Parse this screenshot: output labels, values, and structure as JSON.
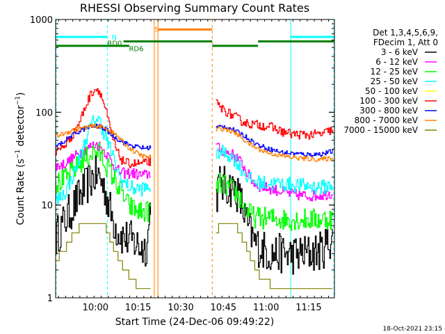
{
  "chart_data": {
    "type": "line",
    "title": "RHESSI Observing Summary Count Rates",
    "xlabel": "Start Time (24-Dec-06 09:49:22)",
    "ylabel_parts": [
      "Count Rate (s",
      "−1",
      " detector",
      "−1",
      ")"
    ],
    "yscale": "log",
    "ylim": [
      1,
      1000
    ],
    "x_unit": "minutes after 09:49:22",
    "xlim": [
      -3.4,
      94.7
    ],
    "x_ticks": [
      {
        "t": 10.63,
        "label": "10:00"
      },
      {
        "t": 25.63,
        "label": "10:15"
      },
      {
        "t": 40.63,
        "label": "10:30"
      },
      {
        "t": 55.63,
        "label": "10:45"
      },
      {
        "t": 70.63,
        "label": "11:00"
      },
      {
        "t": 85.63,
        "label": "11:15"
      }
    ],
    "y_ticks": [
      {
        "v": 1,
        "label": "1"
      },
      {
        "v": 10,
        "label": "10"
      },
      {
        "v": 100,
        "label": "100"
      },
      {
        "v": 1000,
        "label": "1000"
      }
    ],
    "legend_header": [
      "Det 1,3,4,5,6,9,",
      "FDecim 1, Att 0"
    ],
    "legend_position": "right",
    "footer_date": "18-Oct-2021 23:15",
    "flag_labels": [
      {
        "text": "N",
        "color": "#00ffff"
      },
      {
        "text": "S",
        "color": "#ff8000"
      },
      {
        "text": "RD0",
        "color": "#008000"
      },
      {
        "text": "RD6",
        "color": "#008000"
      }
    ],
    "vertical_lines": [
      {
        "t": -3.2,
        "color": "#00ffff",
        "style": "dashed"
      },
      {
        "t": 14.8,
        "color": "#00ffff",
        "style": "dashed"
      },
      {
        "t": 31.3,
        "color": "#ff8000",
        "style": "solid"
      },
      {
        "t": 32.6,
        "color": "#ff8000",
        "style": "solid"
      },
      {
        "t": 51.7,
        "color": "#ff8000",
        "style": "dashed"
      },
      {
        "t": 79.3,
        "color": "#00ffff",
        "style": "solid"
      },
      {
        "t": 94.5,
        "color": "#00ffff",
        "style": "dashed"
      }
    ],
    "flag_bars": [
      {
        "color": "#00ffff",
        "y": 650,
        "segments": [
          [
            -3.2,
            14.8
          ],
          [
            79.3,
            94.5
          ]
        ]
      },
      {
        "color": "#ff8000",
        "y": 780,
        "segments": [
          [
            32.6,
            51.7
          ]
        ]
      },
      {
        "color": "#008000",
        "y": 580,
        "segments": [
          [
            20.5,
            51.7
          ],
          [
            67.8,
            94.5
          ]
        ]
      },
      {
        "color": "#008000",
        "y": 520,
        "segments": [
          [
            -3.2,
            22.5
          ],
          [
            51.7,
            67.8
          ]
        ]
      }
    ],
    "series": [
      {
        "name": "3 - 6 keV",
        "color": "#000000",
        "seg1": [
          [
            -3.4,
            4.5
          ],
          [
            0,
            7
          ],
          [
            3,
            10
          ],
          [
            6,
            14
          ],
          [
            9,
            19
          ],
          [
            10.5,
            21
          ],
          [
            12,
            20
          ],
          [
            14,
            14
          ],
          [
            16,
            8
          ],
          [
            18,
            5.5
          ],
          [
            20,
            4.6
          ],
          [
            22,
            4.3
          ],
          [
            24,
            4
          ],
          [
            26,
            3.6
          ],
          [
            28,
            3.4
          ],
          [
            29,
            4.5
          ],
          [
            30,
            12
          ]
        ],
        "seg2": [
          [
            53,
            12
          ],
          [
            54,
            17
          ],
          [
            56,
            16
          ],
          [
            58,
            15.5
          ],
          [
            60,
            14.5
          ],
          [
            62,
            10
          ],
          [
            64,
            6
          ],
          [
            66,
            4.2
          ],
          [
            68,
            3.5
          ],
          [
            72,
            3
          ],
          [
            76,
            3
          ],
          [
            80,
            2.9
          ],
          [
            85,
            3
          ],
          [
            90,
            3.2
          ],
          [
            94,
            4.6
          ]
        ],
        "noise": 0.22
      },
      {
        "name": "6 - 12 keV",
        "color": "#ff00ff",
        "seg1": [
          [
            -3.4,
            26
          ],
          [
            0,
            28
          ],
          [
            3,
            33
          ],
          [
            6,
            38
          ],
          [
            9,
            43
          ],
          [
            10.5,
            45
          ],
          [
            12,
            43
          ],
          [
            14,
            37
          ],
          [
            16,
            30
          ],
          [
            18,
            24
          ],
          [
            20,
            22
          ],
          [
            22,
            22
          ],
          [
            24,
            22
          ],
          [
            26,
            21
          ],
          [
            28,
            21
          ],
          [
            30,
            22
          ]
        ],
        "seg2": [
          [
            53,
            45
          ],
          [
            54,
            40
          ],
          [
            56,
            38
          ],
          [
            58,
            36
          ],
          [
            60,
            33
          ],
          [
            62,
            28
          ],
          [
            64,
            22
          ],
          [
            66,
            17.5
          ],
          [
            68,
            16
          ],
          [
            72,
            15
          ],
          [
            76,
            14
          ],
          [
            80,
            13
          ],
          [
            85,
            12.5
          ],
          [
            90,
            12.8
          ],
          [
            94,
            13.5
          ]
        ],
        "noise": 0.06
      },
      {
        "name": "12 - 25 keV",
        "color": "#00ff00",
        "seg1": [
          [
            -3.4,
            17
          ],
          [
            0,
            19
          ],
          [
            3,
            24
          ],
          [
            6,
            30
          ],
          [
            9,
            36
          ],
          [
            10.5,
            38
          ],
          [
            12,
            36
          ],
          [
            14,
            28
          ],
          [
            16,
            22
          ],
          [
            18,
            17
          ],
          [
            20,
            13
          ],
          [
            22,
            10
          ],
          [
            24,
            9
          ],
          [
            26,
            8.5
          ],
          [
            28,
            8.3
          ],
          [
            30,
            9
          ]
        ],
        "seg2": [
          [
            53,
            14
          ],
          [
            54,
            17
          ],
          [
            56,
            16.5
          ],
          [
            58,
            15
          ],
          [
            60,
            13.5
          ],
          [
            62,
            11
          ],
          [
            64,
            8.5
          ],
          [
            66,
            7.5
          ],
          [
            68,
            7.3
          ],
          [
            72,
            7.2
          ],
          [
            76,
            7
          ],
          [
            80,
            7
          ],
          [
            85,
            7
          ],
          [
            90,
            7
          ],
          [
            94,
            7.2
          ]
        ],
        "noise": 0.12
      },
      {
        "name": "25 - 50 keV",
        "color": "#00ffff",
        "seg1": [
          [
            -3.4,
            11
          ],
          [
            0,
            14
          ],
          [
            3,
            22
          ],
          [
            6,
            40
          ],
          [
            8,
            62
          ],
          [
            10.5,
            88
          ],
          [
            12,
            80
          ],
          [
            14,
            55
          ],
          [
            16,
            38
          ],
          [
            18,
            24
          ],
          [
            20,
            18
          ],
          [
            22,
            16
          ],
          [
            24,
            15
          ],
          [
            26,
            15
          ],
          [
            28,
            15
          ],
          [
            30,
            16
          ]
        ],
        "seg2": [
          [
            53,
            30
          ],
          [
            54,
            38
          ],
          [
            56,
            36
          ],
          [
            58,
            34
          ],
          [
            60,
            30
          ],
          [
            62,
            24
          ],
          [
            64,
            20
          ],
          [
            66,
            18
          ],
          [
            68,
            17.5
          ],
          [
            72,
            17
          ],
          [
            76,
            17
          ],
          [
            80,
            16.5
          ],
          [
            85,
            16
          ],
          [
            90,
            15.5
          ],
          [
            94,
            16.5
          ]
        ],
        "noise": 0.08
      },
      {
        "name": "50 - 100 keV",
        "color": "#ffff00",
        "seg1": [],
        "seg2": [],
        "noise": 0
      },
      {
        "name": "100 - 300 keV",
        "color": "#ff0000",
        "seg1": [
          [
            -3.4,
            37
          ],
          [
            0,
            45
          ],
          [
            3,
            60
          ],
          [
            5,
            80
          ],
          [
            7,
            115
          ],
          [
            9,
            160
          ],
          [
            10.5,
            180
          ],
          [
            12,
            170
          ],
          [
            14,
            110
          ],
          [
            16,
            60
          ],
          [
            18,
            38
          ],
          [
            20,
            30
          ],
          [
            22,
            28
          ],
          [
            24,
            28
          ],
          [
            26,
            28
          ],
          [
            28,
            28
          ],
          [
            30,
            30
          ]
        ],
        "seg2": [
          [
            53,
            125
          ],
          [
            54,
            115
          ],
          [
            56,
            105
          ],
          [
            58,
            95
          ],
          [
            60,
            88
          ],
          [
            62,
            80
          ],
          [
            64,
            76
          ],
          [
            66,
            74
          ],
          [
            68,
            73
          ],
          [
            72,
            70
          ],
          [
            76,
            62
          ],
          [
            80,
            58
          ],
          [
            85,
            57
          ],
          [
            90,
            58
          ],
          [
            94,
            65
          ]
        ],
        "noise": 0.05
      },
      {
        "name": "300 - 800 keV",
        "color": "#0000ff",
        "seg1": [
          [
            -3.4,
            42
          ],
          [
            0,
            50
          ],
          [
            3,
            58
          ],
          [
            6,
            65
          ],
          [
            9,
            70
          ],
          [
            10.5,
            71
          ],
          [
            12,
            70
          ],
          [
            14,
            66
          ],
          [
            16,
            58
          ],
          [
            18,
            52
          ],
          [
            20,
            48
          ],
          [
            22,
            45
          ],
          [
            24,
            43
          ],
          [
            26,
            42
          ],
          [
            28,
            41
          ],
          [
            30,
            42
          ]
        ],
        "seg2": [
          [
            53,
            68
          ],
          [
            54,
            70
          ],
          [
            56,
            70
          ],
          [
            58,
            67
          ],
          [
            60,
            62
          ],
          [
            62,
            58
          ],
          [
            64,
            53
          ],
          [
            66,
            48
          ],
          [
            68,
            44
          ],
          [
            72,
            40
          ],
          [
            76,
            37
          ],
          [
            80,
            36
          ],
          [
            85,
            35
          ],
          [
            90,
            35.5
          ],
          [
            94,
            38
          ]
        ],
        "noise": 0.025
      },
      {
        "name": "800 - 7000 keV",
        "color": "#ff8000",
        "seg1": [
          [
            -3.4,
            55
          ],
          [
            0,
            60
          ],
          [
            3,
            65
          ],
          [
            6,
            68
          ],
          [
            9,
            70
          ],
          [
            10.5,
            71
          ],
          [
            12,
            70
          ],
          [
            14,
            67
          ],
          [
            16,
            62
          ],
          [
            18,
            56
          ],
          [
            20,
            48
          ],
          [
            22,
            42
          ],
          [
            24,
            38
          ],
          [
            26,
            35
          ],
          [
            28,
            33
          ],
          [
            30,
            33
          ]
        ],
        "seg2": [
          [
            53,
            64
          ],
          [
            54,
            67
          ],
          [
            56,
            66
          ],
          [
            58,
            63
          ],
          [
            60,
            59
          ],
          [
            62,
            53
          ],
          [
            64,
            47
          ],
          [
            66,
            43
          ],
          [
            68,
            40
          ],
          [
            72,
            36
          ],
          [
            76,
            34
          ],
          [
            80,
            32.5
          ],
          [
            85,
            31.5
          ],
          [
            90,
            31
          ],
          [
            94,
            32
          ]
        ],
        "noise": 0.025
      },
      {
        "name": "7000 - 15000 keV",
        "color": "#808000",
        "seg1": [
          [
            -3.4,
            2.6
          ],
          [
            0,
            3.4
          ],
          [
            3,
            5
          ],
          [
            6,
            6.2
          ],
          [
            9,
            6.8
          ],
          [
            10.5,
            6.9
          ],
          [
            12,
            6.5
          ],
          [
            14,
            5.8
          ],
          [
            16,
            4
          ],
          [
            18,
            3
          ],
          [
            20,
            2.2
          ],
          [
            22,
            1.8
          ],
          [
            24,
            1.5
          ],
          [
            26,
            1.3
          ],
          [
            28,
            1.2
          ],
          [
            30,
            1.2
          ]
        ],
        "seg2": [
          [
            53,
            4.5
          ],
          [
            54,
            5.8
          ],
          [
            56,
            6.5
          ],
          [
            58,
            6.5
          ],
          [
            60,
            6
          ],
          [
            62,
            4.5
          ],
          [
            64,
            3.4
          ],
          [
            66,
            2.4
          ],
          [
            68,
            1.8
          ],
          [
            72,
            1.4
          ],
          [
            76,
            1.25
          ],
          [
            80,
            1.2
          ],
          [
            85,
            1.2
          ],
          [
            90,
            1.2
          ],
          [
            94,
            1.25
          ]
        ],
        "noise": 0.0
      }
    ]
  }
}
